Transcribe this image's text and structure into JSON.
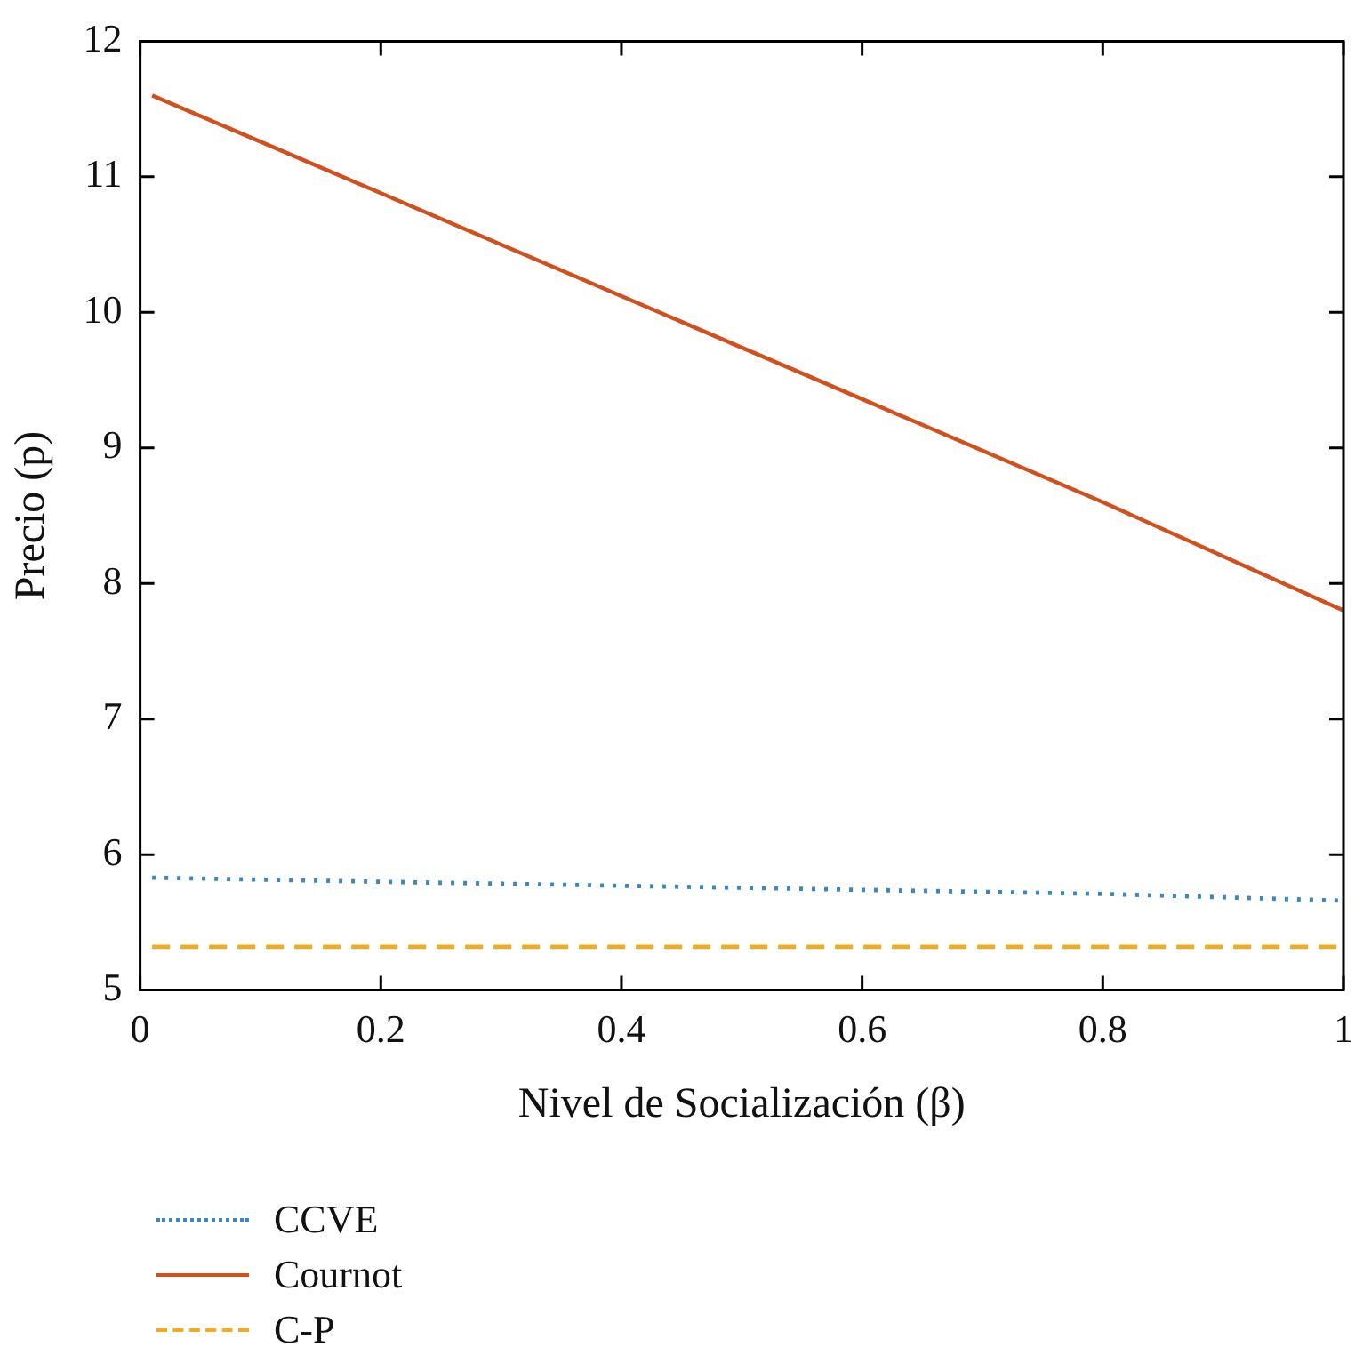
{
  "chart_data": {
    "type": "line",
    "xlabel": "Nivel de Socialización (β)",
    "ylabel": "Precio (p)",
    "xlim": [
      0,
      1
    ],
    "xticks": [
      0,
      0.2,
      0.4,
      0.6,
      0.8,
      1
    ],
    "ylim": [
      5,
      12
    ],
    "yticks": [
      5,
      6,
      7,
      8,
      9,
      10,
      11,
      12
    ],
    "grid": false,
    "legend": "bottom",
    "x": [
      0.01,
      0.2,
      0.4,
      0.6,
      0.8,
      1
    ],
    "series": [
      {
        "name": "CCVE",
        "color": "#3a86c8",
        "line_style": "dotted",
        "values": [
          5.83,
          5.8,
          5.77,
          5.74,
          5.71,
          5.66
        ]
      },
      {
        "name": "Cournot",
        "color": "#d2501e",
        "line_style": "solid",
        "values": [
          11.6,
          10.88,
          10.12,
          9.36,
          8.6,
          7.8
        ]
      },
      {
        "name": "C-P",
        "color": "#eeac22",
        "line_style": "dashed",
        "values": [
          5.32,
          5.32,
          5.32,
          5.32,
          5.32,
          5.32
        ]
      }
    ]
  }
}
